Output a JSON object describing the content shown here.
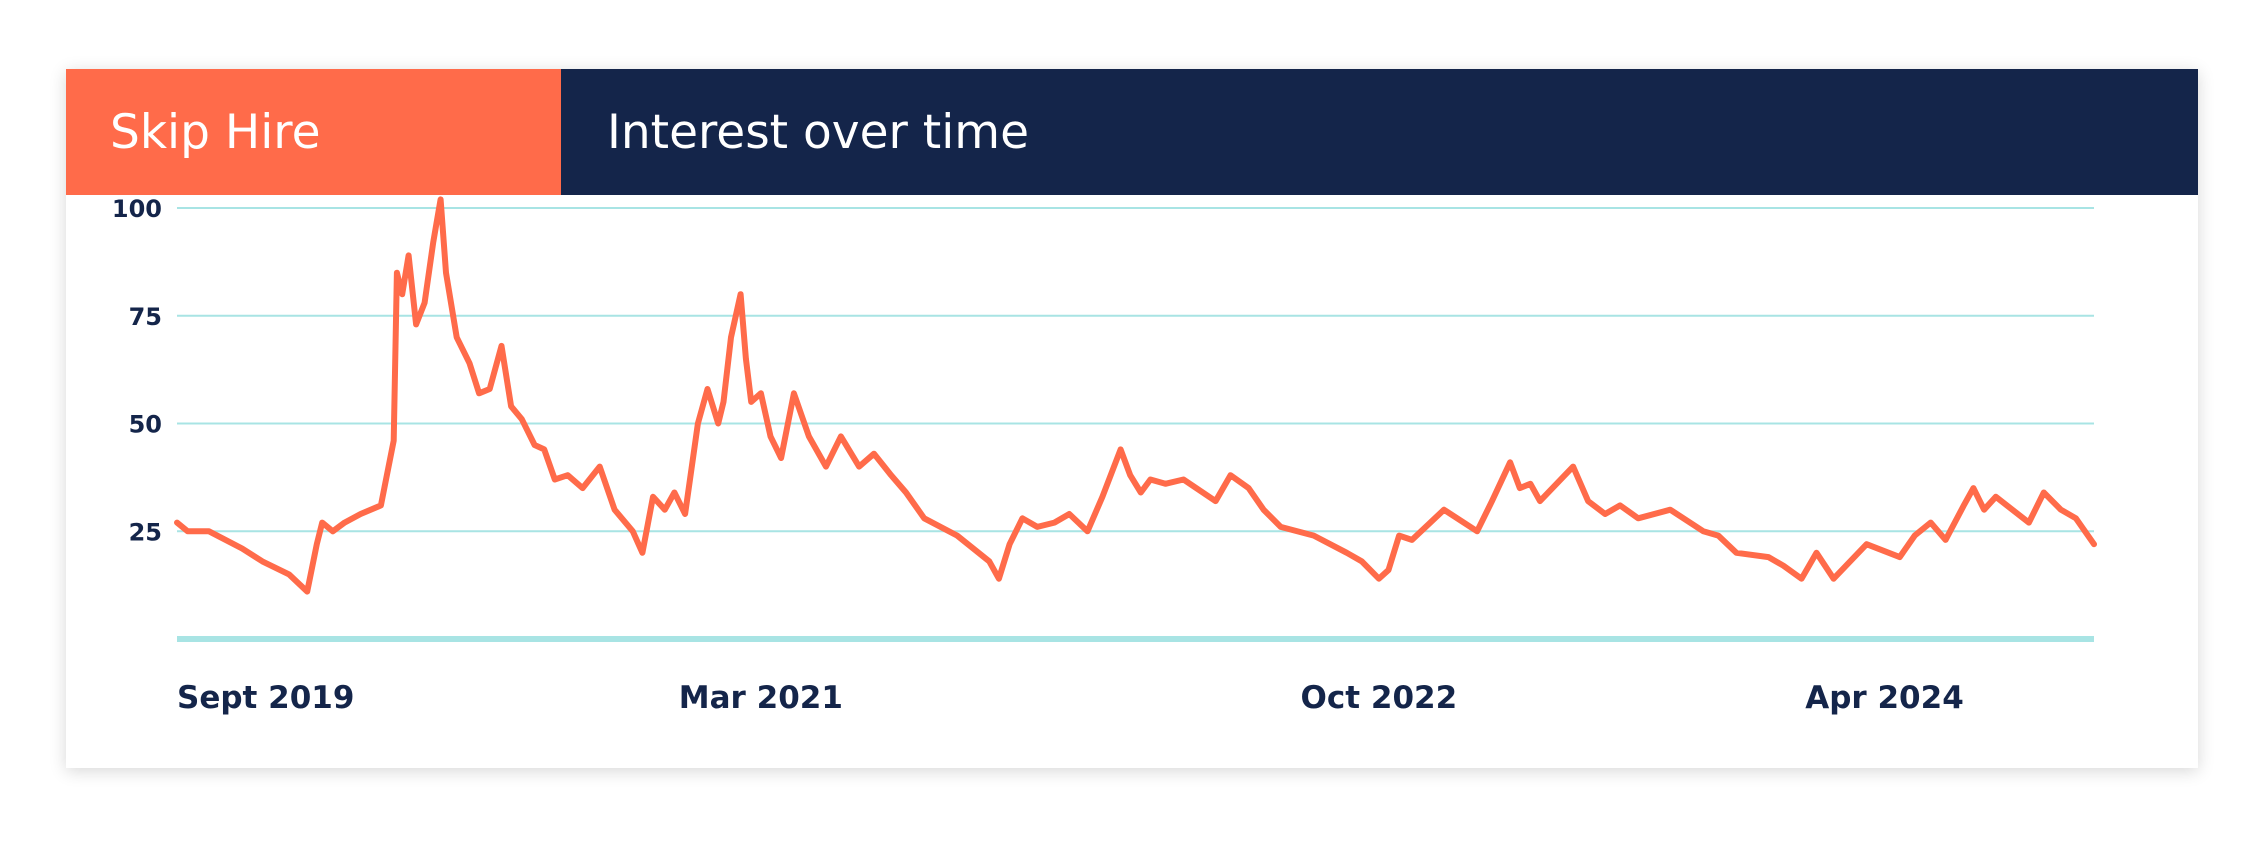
{
  "header": {
    "topic": "Skip Hire",
    "title": "Interest over time"
  },
  "colors": {
    "topic_bg": "#FF6B4A",
    "title_bg": "#14254A",
    "line": "#FF6B4A",
    "grid": "#A8E4E4",
    "baseline": "#A8E4E4",
    "tick_text": "#14254A"
  },
  "chart_data": {
    "type": "line",
    "title": "Interest over time",
    "xlabel": "",
    "ylabel": "",
    "ylim": [
      0,
      100
    ],
    "yticks": [
      25,
      50,
      75,
      100
    ],
    "ytick_labels": [
      "25",
      "50",
      "75",
      "100"
    ],
    "x_start": "2019-09-01",
    "x_end": "2024-08-01",
    "xtick_dates": [
      "2019-09-01",
      "2021-03-01",
      "2022-10-01",
      "2024-04-01"
    ],
    "xtick_labels": [
      "Sept 2019",
      "Mar 2021",
      "Oct 2022",
      "Apr 2024"
    ],
    "grid": true,
    "legend": "none",
    "series": [
      {
        "x": [
          "2019-09-01",
          "2019-09-11",
          "2019-10-01",
          "2019-11-01",
          "2019-11-20",
          "2019-12-15",
          "2020-01-01",
          "2020-01-10",
          "2020-01-15",
          "2020-01-25",
          "2020-02-05",
          "2020-02-20",
          "2020-03-10",
          "2020-03-22",
          "2020-03-25",
          "2020-03-30",
          "2020-04-05",
          "2020-04-12",
          "2020-04-20",
          "2020-04-28",
          "2020-05-05",
          "2020-05-10",
          "2020-05-20",
          "2020-06-01",
          "2020-06-10",
          "2020-06-20",
          "2020-07-01",
          "2020-07-10",
          "2020-07-20",
          "2020-08-01",
          "2020-08-10",
          "2020-08-20",
          "2020-09-01",
          "2020-09-15",
          "2020-10-01",
          "2020-10-15",
          "2020-11-01",
          "2020-11-10",
          "2020-11-20",
          "2020-12-01",
          "2020-12-10",
          "2020-12-20",
          "2021-01-01",
          "2021-01-10",
          "2021-01-20",
          "2021-01-25",
          "2021-02-01",
          "2021-02-10",
          "2021-02-15",
          "2021-02-20",
          "2021-03-01",
          "2021-03-10",
          "2021-03-20",
          "2021-04-01",
          "2021-04-15",
          "2021-05-01",
          "2021-05-15",
          "2021-06-01",
          "2021-06-15",
          "2021-07-01",
          "2021-07-15",
          "2021-08-01",
          "2021-09-01",
          "2021-10-01",
          "2021-10-10",
          "2021-10-20",
          "2021-11-01",
          "2021-11-15",
          "2021-12-01",
          "2021-12-15",
          "2022-01-01",
          "2022-01-15",
          "2022-02-01",
          "2022-02-10",
          "2022-02-20",
          "2022-03-01",
          "2022-03-15",
          "2022-04-01",
          "2022-05-01",
          "2022-05-15",
          "2022-06-01",
          "2022-06-15",
          "2022-07-01",
          "2022-08-01",
          "2022-09-01",
          "2022-09-15",
          "2022-10-01",
          "2022-10-10",
          "2022-10-20",
          "2022-11-01",
          "2022-12-01",
          "2023-01-01",
          "2023-01-15",
          "2023-02-01",
          "2023-02-10",
          "2023-02-20",
          "2023-03-01",
          "2023-04-01",
          "2023-04-15",
          "2023-05-01",
          "2023-05-15",
          "2023-06-01",
          "2023-07-01",
          "2023-08-01",
          "2023-08-15",
          "2023-09-01",
          "2023-10-01",
          "2023-10-15",
          "2023-11-01",
          "2023-11-15",
          "2023-12-01",
          "2024-01-01",
          "2024-02-01",
          "2024-02-15",
          "2024-03-01",
          "2024-03-15",
          "2024-04-01",
          "2024-04-10",
          "2024-04-20",
          "2024-05-01",
          "2024-06-01",
          "2024-06-15",
          "2024-07-01",
          "2024-07-15",
          "2024-08-01"
        ],
        "y": [
          27,
          25,
          25,
          21,
          18,
          15,
          11,
          22,
          27,
          25,
          27,
          29,
          31,
          46,
          85,
          80,
          89,
          73,
          78,
          92,
          102,
          85,
          70,
          64,
          57,
          58,
          68,
          54,
          51,
          45,
          44,
          37,
          38,
          35,
          40,
          30,
          25,
          20,
          33,
          30,
          34,
          29,
          50,
          58,
          50,
          55,
          70,
          80,
          65,
          55,
          57,
          47,
          42,
          57,
          47,
          40,
          47,
          40,
          43,
          38,
          34,
          28,
          24,
          18,
          14,
          22,
          28,
          26,
          27,
          29,
          25,
          33,
          44,
          38,
          34,
          37,
          36,
          37,
          32,
          38,
          35,
          30,
          26,
          24,
          20,
          18,
          14,
          16,
          24,
          23,
          30,
          25,
          32,
          41,
          35,
          36,
          32,
          40,
          32,
          29,
          31,
          28,
          30,
          25,
          24,
          20,
          19,
          17,
          14,
          20,
          14,
          22,
          19,
          24,
          27,
          23,
          31,
          35,
          30,
          33,
          27,
          34,
          30,
          28,
          22
        ]
      }
    ]
  }
}
